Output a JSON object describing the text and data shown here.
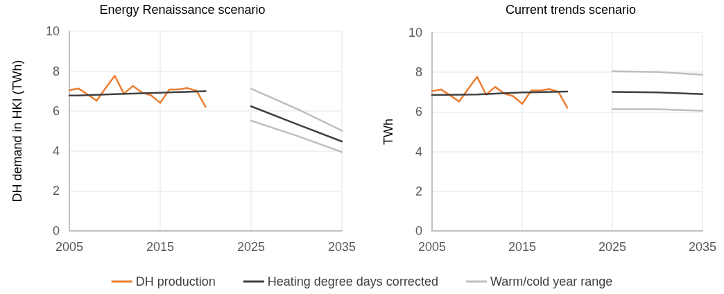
{
  "chart_data": [
    {
      "type": "line",
      "title": "Energy Renaissance scenario",
      "ylabel": "DH demand in HKI (TWh)",
      "xlim": [
        2005,
        2035
      ],
      "xticks": [
        2005,
        2015,
        2025,
        2035
      ],
      "ylim": [
        0,
        10
      ],
      "yticks": [
        0,
        2,
        4,
        6,
        8,
        10
      ],
      "grid": true,
      "legend": "bottom",
      "marker": "none",
      "line_style": "solid",
      "series": [
        {
          "name": "DH production",
          "color": "#ed7d31",
          "x": [
            2005,
            2006,
            2007,
            2008,
            2009,
            2010,
            2011,
            2012,
            2013,
            2014,
            2015,
            2016,
            2017,
            2018,
            2019,
            2020
          ],
          "values": [
            7.05,
            7.13,
            6.84,
            6.52,
            7.16,
            7.77,
            6.87,
            7.26,
            6.93,
            6.79,
            6.41,
            7.08,
            7.08,
            7.15,
            7.02,
            6.21
          ]
        },
        {
          "name": "Heating degree days corrected",
          "color": "#404040",
          "x": [
            2005,
            2006,
            2010,
            2015,
            2020,
            2022,
            2025,
            2030,
            2035
          ],
          "values": [
            6.78,
            6.78,
            6.85,
            6.92,
            7.0,
            null,
            6.24,
            5.35,
            4.48
          ]
        },
        {
          "name": "Warm/cold year range",
          "color": "#bfbfbf",
          "x": [
            2025,
            2030,
            2035
          ],
          "values": [
            7.12,
            6.12,
            5.02
          ]
        },
        {
          "color": "#bfbfbf",
          "x": [
            2025,
            2030,
            2035
          ],
          "values": [
            5.52,
            4.77,
            3.95
          ]
        }
      ]
    },
    {
      "type": "line",
      "title": "Current trends scenario",
      "ylabel": "TWh",
      "xlim": [
        2005,
        2035
      ],
      "xticks": [
        2005,
        2015,
        2025,
        2035
      ],
      "ylim": [
        0,
        10
      ],
      "yticks": [
        0,
        2,
        4,
        6,
        8,
        10
      ],
      "grid": true,
      "marker": "none",
      "line_style": "solid",
      "series": [
        {
          "color": "#ed7d31",
          "x": [
            2005,
            2006,
            2007,
            2008,
            2009,
            2010,
            2011,
            2012,
            2013,
            2014,
            2015,
            2016,
            2017,
            2018,
            2019,
            2020
          ],
          "values": [
            7.05,
            7.13,
            6.84,
            6.52,
            7.16,
            7.77,
            6.87,
            7.26,
            6.93,
            6.79,
            6.41,
            7.08,
            7.08,
            7.15,
            7.02,
            6.21
          ]
        },
        {
          "color": "#404040",
          "x": [
            2005,
            2010,
            2015,
            2020,
            2022,
            2025,
            2030,
            2035
          ],
          "values": [
            6.85,
            6.88,
            6.98,
            7.03,
            null,
            7.01,
            6.98,
            6.9
          ]
        },
        {
          "color": "#bfbfbf",
          "x": [
            2025,
            2030,
            2035
          ],
          "values": [
            8.05,
            8.02,
            7.88
          ]
        },
        {
          "color": "#bfbfbf",
          "x": [
            2025,
            2030,
            2035
          ],
          "values": [
            6.14,
            6.14,
            6.06
          ]
        }
      ]
    }
  ]
}
